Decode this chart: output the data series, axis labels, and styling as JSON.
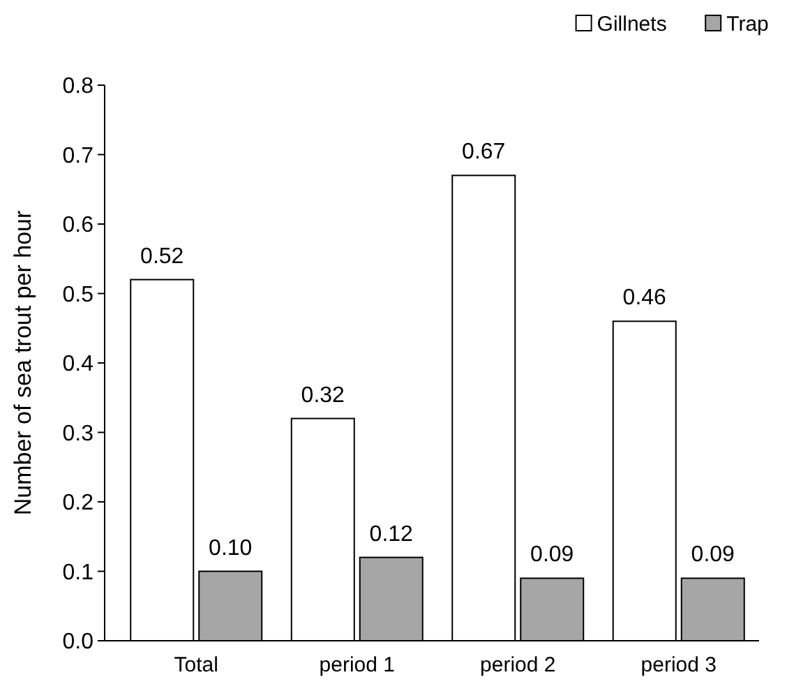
{
  "chart_data": {
    "type": "bar",
    "ylabel": "Number of sea trout per hour",
    "categories": [
      "Total",
      "period 1",
      "period 2",
      "period 3"
    ],
    "series": [
      {
        "name": "Gillnets",
        "color": "#ffffff",
        "values": [
          0.52,
          0.32,
          0.67,
          0.46
        ],
        "value_labels": [
          "0.52",
          "0.32",
          "0.67",
          "0.46"
        ]
      },
      {
        "name": "Trap",
        "color": "#a6a6a6",
        "values": [
          0.1,
          0.12,
          0.09,
          0.09
        ],
        "value_labels": [
          "0.10",
          "0.12",
          "0.09",
          "0.09"
        ]
      }
    ],
    "ylim": [
      0,
      0.8
    ],
    "yticks": [
      {
        "value": 0,
        "label": "0.0"
      },
      {
        "value": 0.1,
        "label": "0.1"
      },
      {
        "value": 0.2,
        "label": "0.2"
      },
      {
        "value": 0.3,
        "label": "0.3"
      },
      {
        "value": 0.4,
        "label": "0.4"
      },
      {
        "value": 0.5,
        "label": "0.5"
      },
      {
        "value": 0.6,
        "label": "0.6"
      },
      {
        "value": 0.7,
        "label": "0.7"
      },
      {
        "value": 0.8,
        "label": "0.8"
      }
    ],
    "legend": "top right"
  }
}
